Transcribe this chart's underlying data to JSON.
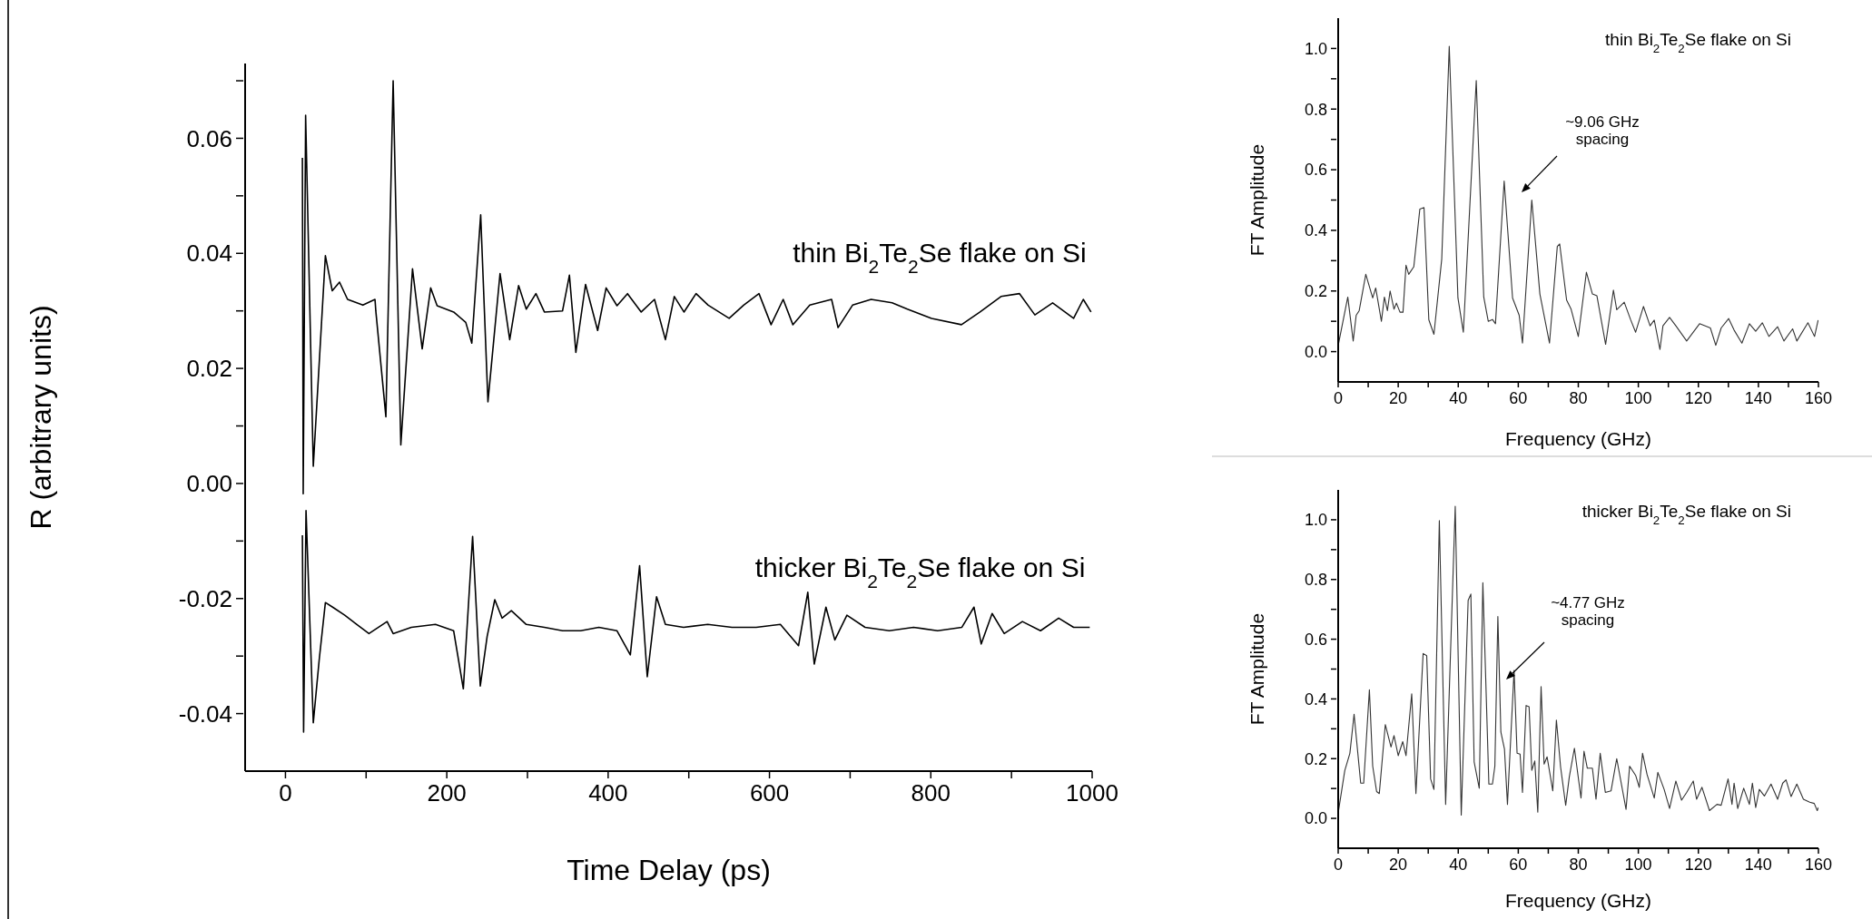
{
  "chart_data": [
    {
      "type": "line",
      "xlabel": "Time Delay (ps)",
      "ylabel": "R (arbitrary units)",
      "xlim": [
        -50,
        1000
      ],
      "ylim": [
        -0.05,
        0.073
      ],
      "xticks": [
        0,
        {
          "value": 100,
          "label": null
        },
        200,
        {
          "value": 300,
          "label": null
        },
        400,
        {
          "value": 500,
          "label": null
        },
        600,
        {
          "value": 700,
          "label": null
        },
        800,
        {
          "value": 900,
          "label": null
        },
        1000
      ],
      "yticks": [
        {
          "value": -0.04,
          "label": "-0.04"
        },
        {
          "value": -0.03,
          "label": null
        },
        {
          "value": -0.02,
          "label": "-0.02"
        },
        {
          "value": -0.01,
          "label": null
        },
        {
          "value": 0,
          "label": "0.00"
        },
        {
          "value": 0.01,
          "label": null
        },
        {
          "value": 0.02,
          "label": "0.02"
        },
        {
          "value": 0.03,
          "label": null
        },
        {
          "value": 0.04,
          "label": "0.04"
        },
        {
          "value": 0.05,
          "label": null
        },
        {
          "value": 0.06,
          "label": "0.06"
        },
        {
          "value": 0.07,
          "label": null
        }
      ],
      "series": [
        {
          "name": "thin Bi$_{2}$Te$_{2}$Se flake on Si",
          "color": "#000000",
          "x": [
            21,
            22,
            25,
            34.5,
            49.5,
            58,
            67,
            77,
            96,
            111,
            112,
            124.5,
            133.5,
            143,
            157.5,
            169.5,
            180,
            188,
            208.5,
            223.5,
            231,
            242,
            251,
            266,
            278,
            289,
            298.5,
            310.5,
            321,
            343.5,
            352,
            360,
            372,
            387,
            397.5,
            411,
            424,
            441,
            457.5,
            471,
            482,
            494,
            509,
            524,
            550,
            568,
            587,
            602,
            617,
            629,
            650,
            677,
            685,
            703,
            726,
            752,
            771,
            801,
            838,
            861,
            887,
            910,
            929,
            951,
            977,
            989,
            998.6
          ],
          "values": [
            0.0566,
            -0.0018,
            0.064,
            0.003,
            0.0396,
            0.0335,
            0.035,
            0.032,
            0.031,
            0.032,
            0.03,
            0.0116,
            0.07,
            0.0067,
            0.0373,
            0.0234,
            0.034,
            0.0309,
            0.0298,
            0.028,
            0.0244,
            0.0467,
            0.0142,
            0.0365,
            0.025,
            0.0344,
            0.0303,
            0.033,
            0.0298,
            0.03,
            0.0362,
            0.0228,
            0.0346,
            0.0266,
            0.034,
            0.0309,
            0.033,
            0.0298,
            0.032,
            0.025,
            0.0325,
            0.0298,
            0.033,
            0.031,
            0.0287,
            0.031,
            0.033,
            0.0276,
            0.032,
            0.0276,
            0.031,
            0.032,
            0.0271,
            0.031,
            0.032,
            0.0314,
            0.0303,
            0.0287,
            0.0276,
            0.0298,
            0.0325,
            0.033,
            0.0293,
            0.0314,
            0.0287,
            0.032,
            0.0298
          ]
        },
        {
          "name": "thicker Bi$_{2}$Te$_{2}$Se flake on Si",
          "color": "#000000",
          "x": [
            21,
            22.5,
            25.5,
            34.5,
            42,
            49.5,
            58.5,
            73.5,
            88.5,
            103.5,
            126,
            133.5,
            156,
            186,
            208.5,
            220.5,
            232,
            241.5,
            250,
            259.5,
            268.5,
            280,
            298.5,
            321,
            343.5,
            366,
            388.5,
            411,
            427.5,
            439,
            448.5,
            460,
            471,
            493.5,
            523.5,
            553.5,
            583.5,
            613.5,
            636,
            647.5,
            655.5,
            670,
            681,
            696,
            718.5,
            748.5,
            778.5,
            808.5,
            838.5,
            853.5,
            862.5,
            876,
            891,
            913.5,
            936,
            958.5,
            977,
            997
          ],
          "values": [
            -0.009,
            -0.0432,
            -0.0047,
            -0.0416,
            -0.0304,
            -0.0207,
            -0.0215,
            -0.0229,
            -0.0245,
            -0.0261,
            -0.024,
            -0.0261,
            -0.025,
            -0.0245,
            -0.0256,
            -0.0357,
            -0.0092,
            -0.0352,
            -0.0266,
            -0.0202,
            -0.0234,
            -0.0221,
            -0.0245,
            -0.025,
            -0.0256,
            -0.0256,
            -0.025,
            -0.0256,
            -0.0298,
            -0.0143,
            -0.0336,
            -0.0197,
            -0.0245,
            -0.025,
            -0.0245,
            -0.025,
            -0.025,
            -0.0245,
            -0.0282,
            -0.0189,
            -0.0314,
            -0.0215,
            -0.0272,
            -0.0229,
            -0.025,
            -0.0256,
            -0.025,
            -0.0256,
            -0.025,
            -0.0215,
            -0.0279,
            -0.0226,
            -0.0261,
            -0.024,
            -0.0256,
            -0.0234,
            -0.025,
            -0.025
          ]
        }
      ]
    },
    {
      "type": "line",
      "title": "thin Bi$_{2}$Te$_{2}$Se flake on Si",
      "xlabel": "Frequency (GHz)",
      "ylabel": "FT Amplitude",
      "xlim": [
        0,
        160
      ],
      "ylim": [
        -0.1,
        1.1
      ],
      "xticks": [
        0,
        {
          "value": 10,
          "label": null
        },
        20,
        {
          "value": 30,
          "label": null
        },
        40,
        {
          "value": 50,
          "label": null
        },
        60,
        {
          "value": 70,
          "label": null
        },
        80,
        {
          "value": 90,
          "label": null
        },
        100,
        {
          "value": 110,
          "label": null
        },
        120,
        {
          "value": 130,
          "label": null
        },
        140,
        {
          "value": 150,
          "label": null
        },
        160
      ],
      "yticks": [
        {
          "value": 0,
          "label": "0.0"
        },
        {
          "value": 0.1,
          "label": null
        },
        0.2,
        {
          "value": 0.3,
          "label": null
        },
        0.4,
        {
          "value": 0.5,
          "label": null
        },
        0.6,
        {
          "value": 0.7,
          "label": null
        },
        0.8,
        {
          "value": 0.9,
          "label": null
        },
        {
          "value": 1,
          "label": "1.0"
        }
      ],
      "annotations": [
        "~9.06 GHz spacing"
      ],
      "series": [
        {
          "color": "#333333",
          "x": [
            0,
            3.2,
            5,
            6,
            7,
            9.2,
            11.5,
            12.5,
            14.4,
            15.4,
            16.4,
            17.3,
            18.6,
            19.4,
            20.6,
            21.6,
            22.6,
            23.5,
            25.2,
            27.2,
            28.6,
            30.2,
            31.9,
            34.5,
            37,
            39.9,
            41.7,
            46,
            48.5,
            50,
            51.4,
            52.4,
            55.3,
            58.1,
            60.3,
            61.4,
            64.5,
            67.2,
            70.4,
            73,
            73.8,
            76.1,
            77.6,
            80,
            82.7,
            84.7,
            86.2,
            89.1,
            91.7,
            92.8,
            95.3,
            97.4,
            99.1,
            101.7,
            103.9,
            105.3,
            107.2,
            108.2,
            110.4,
            112.5,
            116.1,
            120.4,
            124,
            125.8,
            127.6,
            130.1,
            131.9,
            134.5,
            137,
            139.1,
            141.3,
            143.5,
            146.4,
            148.5,
            151.4,
            152.8,
            156.5,
            158.7,
            159.9
          ],
          "values": [
            0.02,
            0.18,
            0.035,
            0.12,
            0.135,
            0.255,
            0.177,
            0.21,
            0.1,
            0.18,
            0.135,
            0.2,
            0.14,
            0.16,
            0.13,
            0.13,
            0.285,
            0.255,
            0.28,
            0.47,
            0.475,
            0.105,
            0.057,
            0.305,
            1.007,
            0.177,
            0.064,
            0.894,
            0.18,
            0.1,
            0.106,
            0.092,
            0.563,
            0.177,
            0.12,
            0.028,
            0.5,
            0.19,
            0.028,
            0.347,
            0.355,
            0.17,
            0.14,
            0.05,
            0.262,
            0.19,
            0.184,
            0.024,
            0.203,
            0.138,
            0.163,
            0.106,
            0.064,
            0.149,
            0.085,
            0.104,
            0.007,
            0.085,
            0.113,
            0.085,
            0.035,
            0.092,
            0.078,
            0.021,
            0.078,
            0.109,
            0.071,
            0.028,
            0.092,
            0.067,
            0.095,
            0.05,
            0.082,
            0.035,
            0.075,
            0.035,
            0.095,
            0.05,
            0.104
          ]
        }
      ]
    },
    {
      "type": "line",
      "title": "thicker Bi$_{2}$Te$_{2}$Se flake on Si",
      "xlabel": "Frequency (GHz)",
      "ylabel": "FT Amplitude",
      "xlim": [
        0,
        160
      ],
      "ylim": [
        -0.1,
        1.1
      ],
      "xticks": [
        0,
        {
          "value": 10,
          "label": null
        },
        20,
        {
          "value": 30,
          "label": null
        },
        40,
        {
          "value": 50,
          "label": null
        },
        60,
        {
          "value": 70,
          "label": null
        },
        80,
        {
          "value": 90,
          "label": null
        },
        100,
        {
          "value": 110,
          "label": null
        },
        120,
        {
          "value": 130,
          "label": null
        },
        140,
        {
          "value": 150,
          "label": null
        },
        160
      ],
      "yticks": [
        {
          "value": 0,
          "label": "0.0"
        },
        {
          "value": 0.1,
          "label": null
        },
        0.2,
        {
          "value": 0.3,
          "label": null
        },
        0.4,
        {
          "value": 0.5,
          "label": null
        },
        0.6,
        {
          "value": 0.7,
          "label": null
        },
        0.8,
        {
          "value": 0.9,
          "label": null
        },
        {
          "value": 1,
          "label": "1.0"
        }
      ],
      "annotations": [
        "~4.77 GHz spacing"
      ],
      "series": [
        {
          "color": "#333333",
          "x": [
            0,
            2.2,
            3.9,
            5.3,
            7.5,
            8.5,
            10.4,
            11.5,
            12.8,
            13.7,
            15.7,
            17.6,
            18.6,
            20,
            21.5,
            22.6,
            24.5,
            25.9,
            28.3,
            29.5,
            30.8,
            31.9,
            33.7,
            35.8,
            39,
            41,
            43.3,
            44.2,
            45.3,
            47,
            48.2,
            50.2,
            51.4,
            52.2,
            53.2,
            54.2,
            55.4,
            56.4,
            58.6,
            59.6,
            60.6,
            61.4,
            62.6,
            63.6,
            64.5,
            65.5,
            66.5,
            67.6,
            68.6,
            69.6,
            71.5,
            72.7,
            74.1,
            75.8,
            77,
            78.7,
            80.9,
            81.9,
            83,
            84.7,
            85.9,
            87.3,
            89,
            90.9,
            92.8,
            95.9,
            97.1,
            99.1,
            100.3,
            101.4,
            102.9,
            105.3,
            106.5,
            108.6,
            110.4,
            112.5,
            114.4,
            116.1,
            118.3,
            119.4,
            121.2,
            123.7,
            126.2,
            127.6,
            129.9,
            131.2,
            131.9,
            133.1,
            135.1,
            137,
            138,
            139.1,
            140.3,
            142,
            144.2,
            146.4,
            148.1,
            149.2,
            150.9,
            152.8,
            155,
            157.1,
            158.6,
            159.6,
            160
          ],
          "values": [
            0.018,
            0.16,
            0.218,
            0.349,
            0.118,
            0.118,
            0.431,
            0.175,
            0.09,
            0.083,
            0.314,
            0.239,
            0.277,
            0.21,
            0.257,
            0.21,
            0.417,
            0.083,
            0.552,
            0.545,
            0.132,
            0.097,
            0.997,
            0.047,
            1.045,
            0.011,
            0.73,
            0.751,
            0.189,
            0.101,
            0.789,
            0.115,
            0.115,
            0.175,
            0.676,
            0.289,
            0.232,
            0.047,
            0.495,
            0.218,
            0.215,
            0.087,
            0.378,
            0.374,
            0.161,
            0.192,
            0.021,
            0.441,
            0.182,
            0.206,
            0.092,
            0.329,
            0.172,
            0.044,
            0.139,
            0.235,
            0.068,
            0.225,
            0.168,
            0.168,
            0.064,
            0.218,
            0.087,
            0.092,
            0.2,
            0.03,
            0.175,
            0.144,
            0.104,
            0.218,
            0.147,
            0.068,
            0.154,
            0.097,
            0.033,
            0.125,
            0.061,
            0.087,
            0.125,
            0.064,
            0.104,
            0.026,
            0.047,
            0.044,
            0.132,
            0.047,
            0.118,
            0.033,
            0.101,
            0.047,
            0.118,
            0.036,
            0.097,
            0.075,
            0.115,
            0.064,
            0.118,
            0.129,
            0.073,
            0.115,
            0.064,
            0.054,
            0.05,
            0.026,
            0.037
          ]
        }
      ]
    }
  ]
}
